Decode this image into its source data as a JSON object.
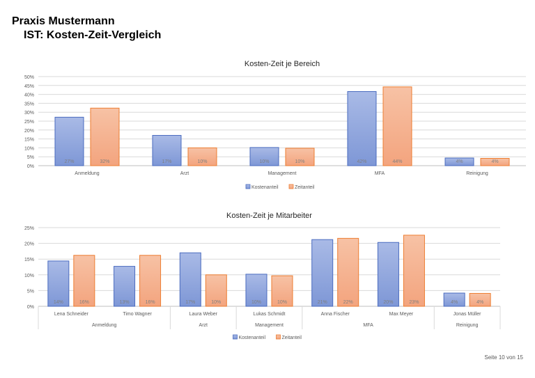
{
  "header": {
    "title": "Praxis Mustermann",
    "subtitle": "IST: Kosten-Zeit-Vergleich"
  },
  "footer": {
    "page": "Seite 10 von 15"
  },
  "colors": {
    "kosten": "#8FA5DC",
    "kosten_border": "#4A6BBF",
    "zeit": "#F4B08E",
    "zeit_border": "#ED7D31"
  },
  "chart_data": [
    {
      "type": "bar",
      "title": "Kosten-Zeit je Bereich",
      "ylim": [
        0,
        50
      ],
      "yticks": [
        "0%",
        "5%",
        "10%",
        "15%",
        "20%",
        "25%",
        "30%",
        "35%",
        "40%",
        "45%",
        "50%"
      ],
      "categories": [
        "Anmeldung",
        "Arzt",
        "Management",
        "MFA",
        "Reinigung"
      ],
      "series": [
        {
          "name": "Kostenanteil",
          "values": [
            27.2,
            17,
            10.2,
            41.6,
            4.3
          ],
          "labels": [
            "27%",
            "17%",
            "10%",
            "42%",
            "4%"
          ]
        },
        {
          "name": "Zeitanteil",
          "values": [
            32.3,
            10,
            9.8,
            44.2,
            4.1
          ],
          "labels": [
            "32%",
            "10%",
            "10%",
            "44%",
            "4%"
          ]
        }
      ],
      "legend": "bottom",
      "grid": true
    },
    {
      "type": "bar",
      "title": "Kosten-Zeit je Mitarbeiter",
      "ylim": [
        0,
        25
      ],
      "yticks": [
        "0%",
        "5%",
        "10%",
        "15%",
        "20%",
        "25%"
      ],
      "categories": [
        "Lena Schneider",
        "Timo Wagner",
        "Laura Weber",
        "Lukas Schmidt",
        "Anna Fischer",
        "Max Meyer",
        "Jonas Müller"
      ],
      "groups": [
        {
          "label": "Anmeldung",
          "span": 2
        },
        {
          "label": "Arzt",
          "span": 1
        },
        {
          "label": "Management",
          "span": 1
        },
        {
          "label": "MFA",
          "span": 2
        },
        {
          "label": "Reinigung",
          "span": 1
        }
      ],
      "series": [
        {
          "name": "Kostenanteil",
          "values": [
            14.4,
            12.7,
            17,
            10.2,
            21.2,
            20.3,
            4.2
          ],
          "labels": [
            "14%",
            "13%",
            "17%",
            "10%",
            "21%",
            "20%",
            "4%"
          ]
        },
        {
          "name": "Zeitanteil",
          "values": [
            16.2,
            16.2,
            10,
            9.7,
            21.6,
            22.6,
            4.1
          ],
          "labels": [
            "16%",
            "16%",
            "10%",
            "10%",
            "22%",
            "23%",
            "4%"
          ]
        }
      ],
      "legend": "bottom",
      "grid": true
    }
  ]
}
